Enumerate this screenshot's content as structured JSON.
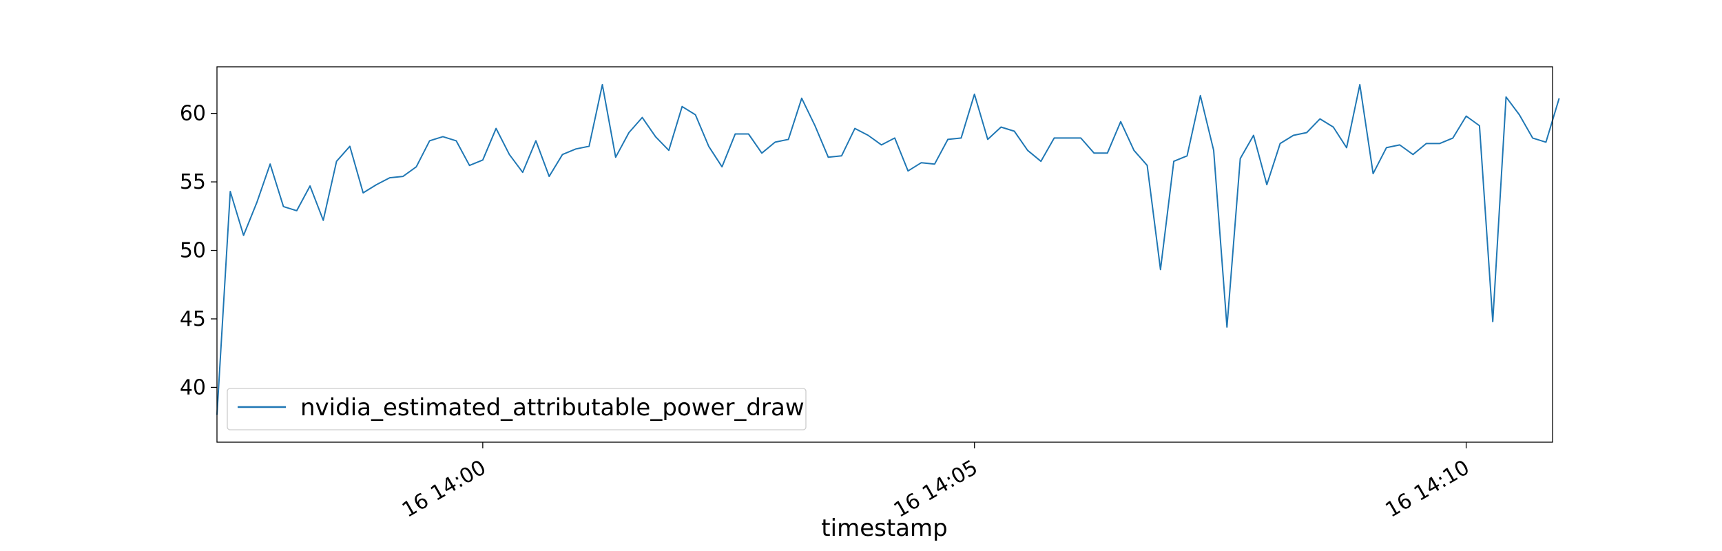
{
  "chart_data": {
    "type": "line",
    "xlabel": "timestamp",
    "ylabel": "",
    "ylim": [
      36,
      63.4
    ],
    "yticks": [
      40,
      45,
      50,
      55,
      60
    ],
    "xticks": [
      {
        "label": "16 14:00",
        "index": 20
      },
      {
        "label": "16 14:05",
        "index": 57
      },
      {
        "label": "16 14:10",
        "index": 94
      }
    ],
    "x_index_range": [
      0,
      100.5
    ],
    "legend_position": "lower-left",
    "grid": false,
    "color": "#1f77b4",
    "series": [
      {
        "name": "nvidia_estimated_attributable_power_draw",
        "values": [
          38.0,
          54.3,
          51.1,
          53.5,
          56.3,
          53.2,
          52.9,
          54.7,
          52.2,
          56.5,
          57.6,
          54.2,
          54.8,
          55.3,
          55.4,
          56.1,
          58.0,
          58.3,
          58.0,
          56.2,
          56.6,
          58.9,
          57.0,
          55.7,
          58.0,
          55.4,
          57.0,
          57.4,
          57.6,
          62.1,
          56.8,
          58.6,
          59.7,
          58.3,
          57.3,
          60.5,
          59.9,
          57.6,
          56.1,
          58.5,
          58.5,
          57.1,
          57.9,
          58.1,
          61.1,
          59.1,
          56.8,
          56.9,
          58.9,
          58.4,
          57.7,
          58.2,
          55.8,
          56.4,
          56.3,
          58.1,
          58.2,
          61.4,
          58.1,
          59.0,
          58.7,
          57.3,
          56.5,
          58.2,
          58.2,
          58.2,
          57.1,
          57.1,
          59.4,
          57.3,
          56.2,
          48.6,
          56.5,
          56.9,
          61.3,
          57.3,
          44.4,
          56.7,
          58.4,
          54.8,
          57.8,
          58.4,
          58.6,
          59.6,
          59.0,
          57.5,
          62.1,
          55.6,
          57.5,
          57.7,
          57.0,
          57.8,
          57.8,
          58.2,
          59.8,
          59.1,
          44.8,
          61.2,
          59.9,
          58.2,
          57.9,
          61.1
        ]
      }
    ]
  }
}
